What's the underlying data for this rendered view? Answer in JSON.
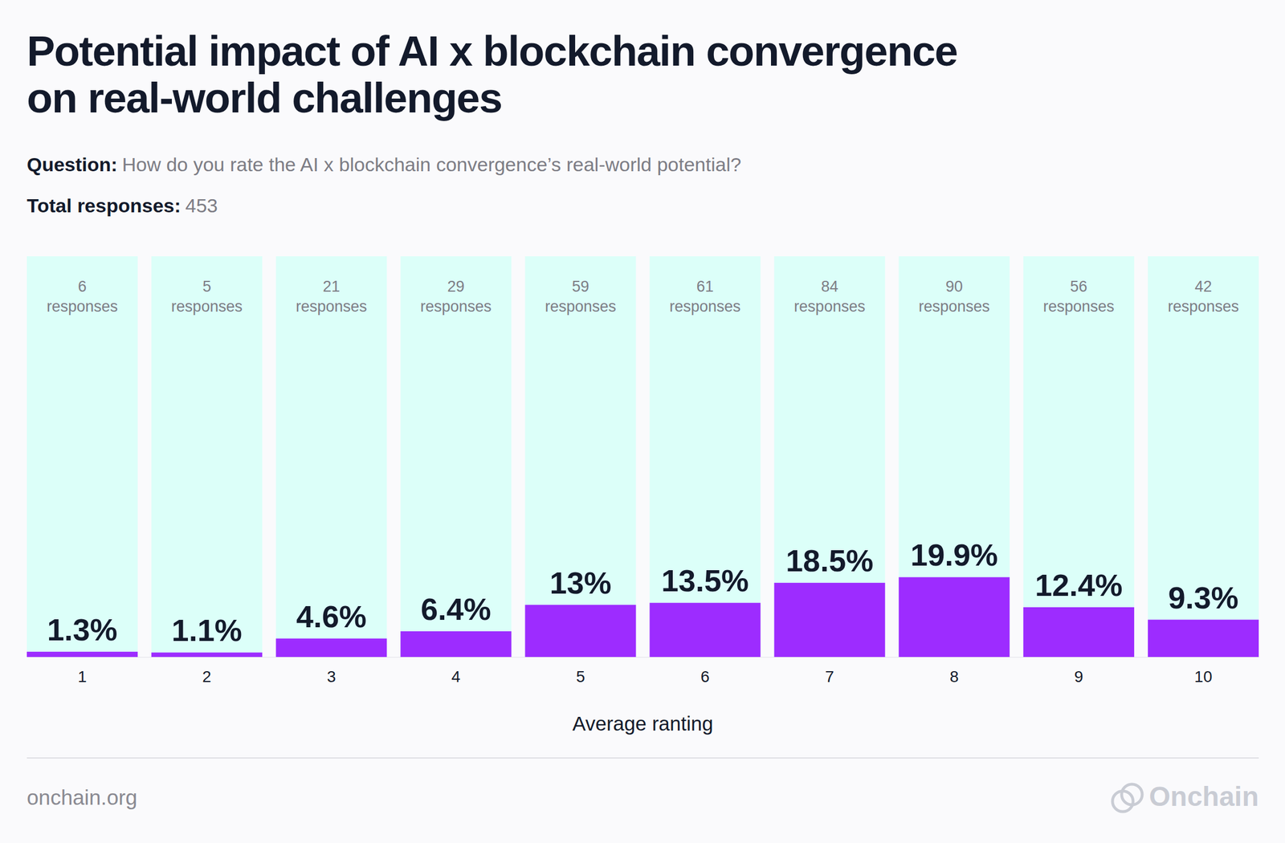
{
  "chart_data": {
    "type": "bar",
    "title": "Potential impact of AI x blockchain convergence on real-world challenges",
    "question_label": "Question:",
    "question": "How do you rate the AI x blockchain convergence’s real-world potential?",
    "total_label": "Total responses:",
    "total": 453,
    "categories": [
      "1",
      "2",
      "3",
      "4",
      "5",
      "6",
      "7",
      "8",
      "9",
      "10"
    ],
    "values": [
      1.3,
      1.1,
      4.6,
      6.4,
      13,
      13.5,
      18.5,
      19.9,
      12.4,
      9.3
    ],
    "value_labels": [
      "1.3%",
      "1.1%",
      "4.6%",
      "6.4%",
      "13%",
      "13.5%",
      "18.5%",
      "19.9%",
      "12.4%",
      "9.3%"
    ],
    "counts": [
      6,
      5,
      21,
      29,
      59,
      61,
      84,
      90,
      56,
      42
    ],
    "count_unit": "responses",
    "color": "#9d2cff",
    "ylim": [
      0,
      100
    ],
    "x_label": "Average ranting",
    "data_labels": true,
    "tick_labels": "x",
    "source": "onchain.org",
    "brand": "Onchain"
  }
}
